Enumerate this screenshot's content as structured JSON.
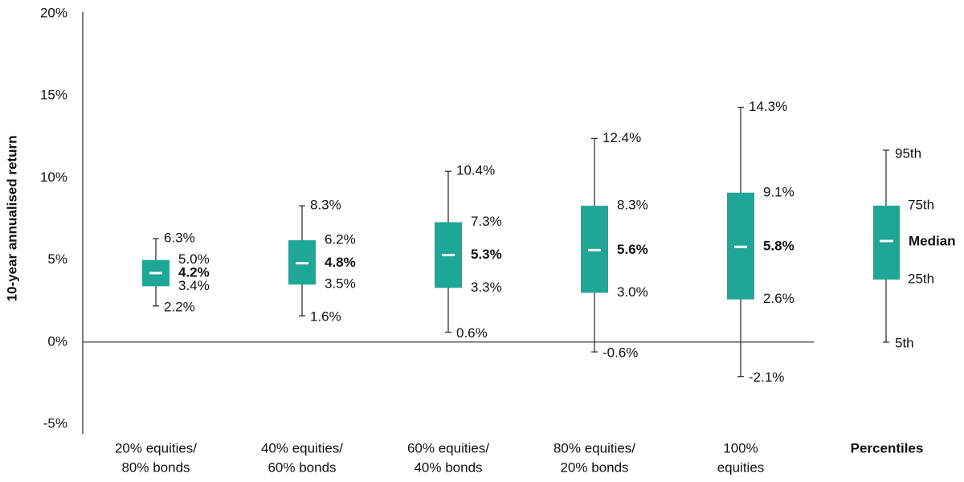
{
  "chart_data": {
    "type": "box",
    "y_label": "10-year annualised return",
    "categories": [
      [
        "20% equities/",
        "80% bonds"
      ],
      [
        "40% equities/",
        "60% bonds"
      ],
      [
        "60% equities/",
        "40% bonds"
      ],
      [
        "80% equities/",
        "20% bonds"
      ],
      [
        "100%",
        "equities"
      ]
    ],
    "color": "#1ea697",
    "stats": {
      "p95": [
        6.3,
        8.3,
        10.4,
        12.4,
        14.3
      ],
      "p75": [
        5.0,
        6.2,
        7.3,
        8.3,
        9.1
      ],
      "median": [
        4.2,
        4.8,
        5.3,
        5.6,
        5.8
      ],
      "p25": [
        3.4,
        3.5,
        3.3,
        3.0,
        2.6
      ],
      "p5": [
        2.2,
        1.6,
        0.6,
        -0.6,
        -2.1
      ]
    },
    "value_labels": {
      "p95": [
        "6.3%",
        "8.3%",
        "10.4%",
        "12.4%",
        "14.3%"
      ],
      "p75": [
        "5.0%",
        "6.2%",
        "7.3%",
        "8.3%",
        "9.1%"
      ],
      "median": [
        "4.2%",
        "4.8%",
        "5.3%",
        "5.6%",
        "5.8%"
      ],
      "p25": [
        "3.4%",
        "3.5%",
        "3.3%",
        "3.0%",
        "2.6%"
      ],
      "p5": [
        "2.2%",
        "1.6%",
        "0.6%",
        "-0.6%",
        "-2.1%"
      ]
    },
    "ylim": [
      -5,
      20
    ],
    "yticks": [
      {
        "value": -5,
        "label": "-5%"
      },
      {
        "value": 0,
        "label": "0%"
      },
      {
        "value": 5,
        "label": "5%"
      },
      {
        "value": 10,
        "label": "10%"
      },
      {
        "value": 15,
        "label": "15%"
      },
      {
        "value": 20,
        "label": "20%"
      }
    ],
    "grid": false,
    "legend": {
      "title": "Percentiles",
      "p95": "95th",
      "p75": "75th",
      "median": "Median",
      "p25": "25th",
      "p5": "5th"
    }
  }
}
